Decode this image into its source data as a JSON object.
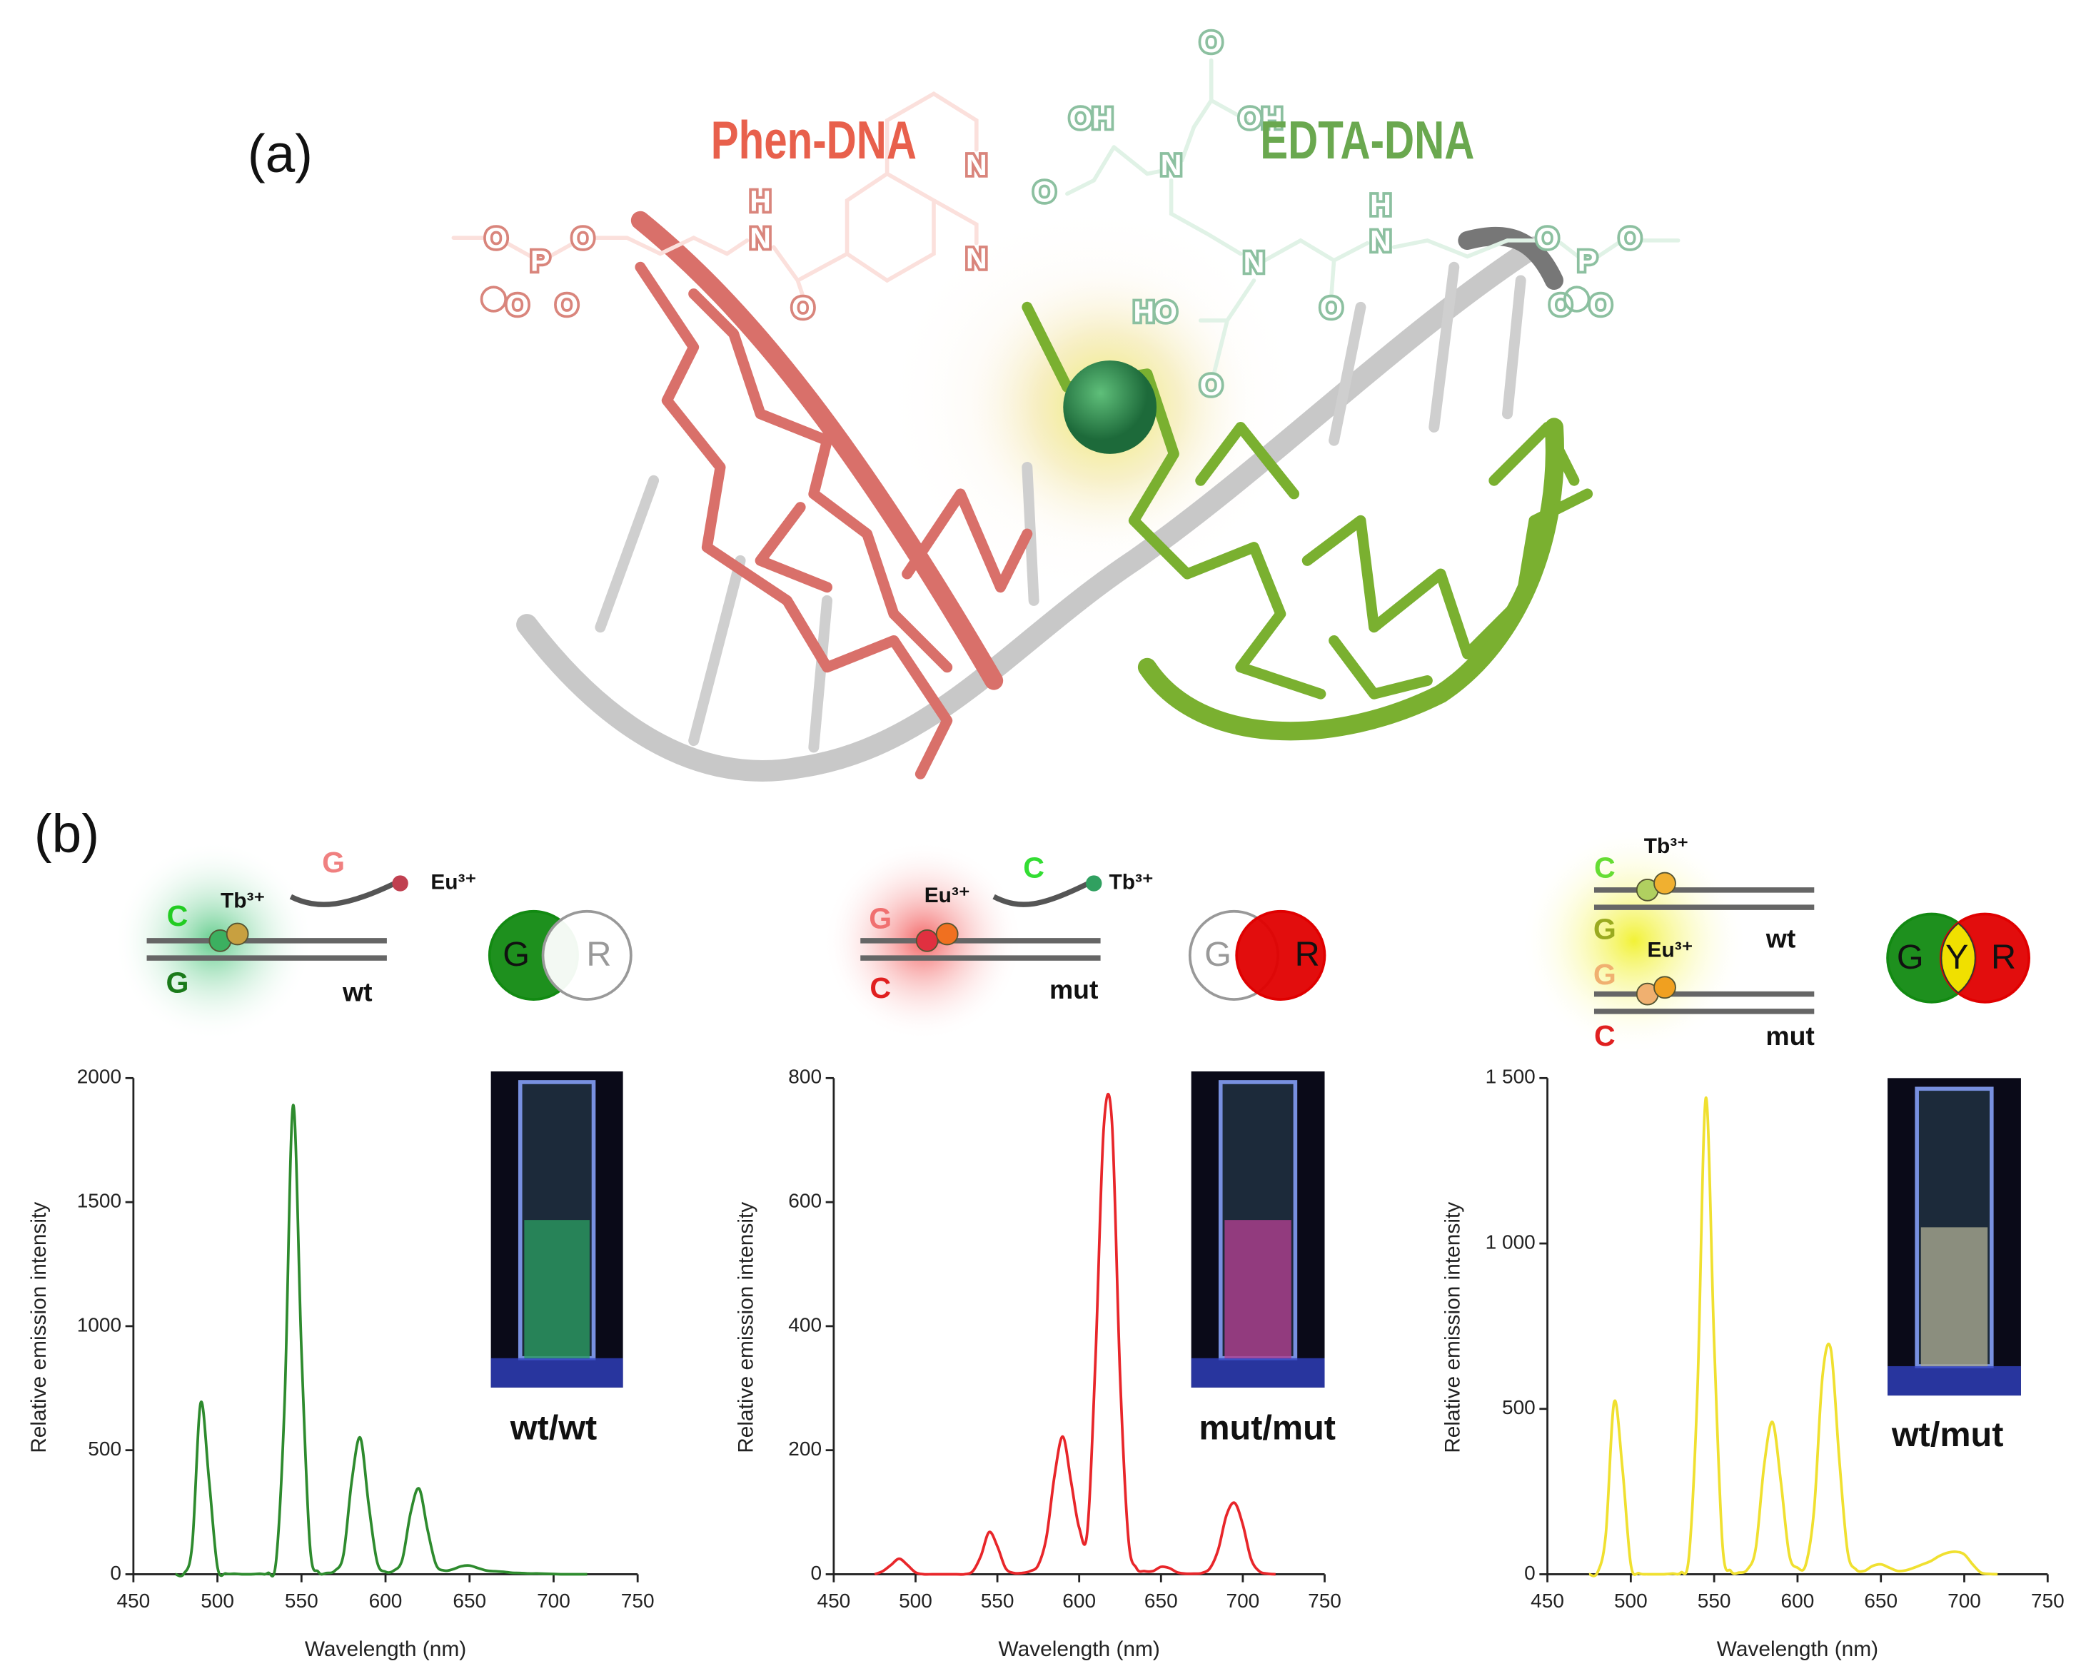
{
  "figure": {
    "panel_a": "(a)",
    "panel_b": "(b)",
    "phen_label": "Phen-DNA",
    "edta_label": "EDTA-DNA",
    "atoms": [
      "O",
      "P",
      "O",
      "O",
      "O",
      "H",
      "N",
      "O",
      "N",
      "N",
      "O",
      "OH",
      "OH",
      "O",
      "N",
      "N",
      "HO",
      "O",
      "H",
      "N",
      "O",
      "O",
      "P",
      "O",
      "O",
      "O"
    ]
  },
  "schemes": [
    {
      "texts": [
        "G",
        "Eu³⁺",
        "Tb³⁺",
        "C",
        "G",
        "wt"
      ],
      "venn": [
        "G",
        "R"
      ]
    },
    {
      "texts": [
        "C",
        "Tb³⁺",
        "Eu³⁺",
        "G",
        "C",
        "mut"
      ],
      "venn": [
        "G",
        "R"
      ]
    },
    {
      "texts": [
        "Tb³⁺",
        "C",
        "G",
        "wt",
        "Eu³⁺",
        "G",
        "C",
        "mut"
      ],
      "venn": [
        "G",
        "Y",
        "R"
      ]
    }
  ],
  "chart_data": [
    {
      "type": "line",
      "xlabel": "Wavelength (nm)",
      "ylabel": "Relative emission intensity",
      "annotation": "wt/wt",
      "xlim": [
        450,
        750
      ],
      "xticks": [
        450,
        500,
        550,
        600,
        650,
        700,
        750
      ],
      "ylim": [
        0,
        2000
      ],
      "yticks": [
        0,
        500,
        1000,
        1500,
        2000
      ],
      "x": [
        475,
        480,
        485,
        490,
        495,
        500,
        505,
        510,
        515,
        520,
        525,
        530,
        535,
        540,
        545,
        550,
        555,
        560,
        565,
        570,
        575,
        580,
        585,
        590,
        595,
        600,
        605,
        610,
        615,
        620,
        625,
        630,
        635,
        640,
        645,
        650,
        655,
        660,
        665,
        670,
        675,
        680,
        685,
        690,
        695,
        700,
        705,
        710,
        715,
        720
      ],
      "series": [
        {
          "color": "#2e8b2e",
          "values": [
            0,
            2,
            120,
            690,
            380,
            30,
            3,
            2,
            0,
            0,
            2,
            5,
            60,
            700,
            1890,
            900,
            120,
            10,
            5,
            15,
            80,
            380,
            550,
            280,
            50,
            10,
            15,
            60,
            250,
            345,
            180,
            40,
            15,
            20,
            32,
            35,
            25,
            15,
            12,
            10,
            6,
            5,
            3,
            3,
            2,
            1,
            0,
            0,
            0,
            0
          ]
        }
      ]
    },
    {
      "type": "line",
      "xlabel": "Wavelength (nm)",
      "ylabel": "Relative emission intensity",
      "annotation": "mut/mut",
      "xlim": [
        450,
        750
      ],
      "xticks": [
        450,
        500,
        550,
        600,
        650,
        700,
        750
      ],
      "ylim": [
        0,
        800
      ],
      "yticks": [
        0,
        200,
        400,
        600,
        800
      ],
      "x": [
        475,
        480,
        485,
        490,
        495,
        500,
        505,
        510,
        515,
        520,
        525,
        530,
        535,
        540,
        545,
        550,
        555,
        560,
        565,
        570,
        575,
        580,
        585,
        590,
        595,
        600,
        605,
        610,
        615,
        620,
        625,
        630,
        635,
        640,
        645,
        650,
        655,
        660,
        665,
        670,
        675,
        680,
        685,
        690,
        695,
        700,
        705,
        710,
        715,
        720
      ],
      "series": [
        {
          "color": "#e8262a",
          "values": [
            0,
            5,
            15,
            25,
            15,
            3,
            0,
            0,
            0,
            0,
            0,
            0,
            5,
            30,
            68,
            45,
            10,
            2,
            2,
            5,
            15,
            60,
            160,
            222,
            150,
            75,
            70,
            350,
            720,
            730,
            320,
            60,
            10,
            5,
            5,
            12,
            10,
            3,
            1,
            1,
            2,
            10,
            40,
            95,
            115,
            80,
            25,
            5,
            1,
            0
          ]
        }
      ]
    },
    {
      "type": "line",
      "xlabel": "Wavelength (nm)",
      "ylabel": "Relative emission intensity",
      "annotation": "wt/mut",
      "xlim": [
        450,
        750
      ],
      "xticks": [
        450,
        500,
        550,
        600,
        650,
        700,
        750
      ],
      "ylim": [
        0,
        1500
      ],
      "yticks": [
        0,
        500,
        {
          "value": 1000,
          "label": "1 000"
        },
        {
          "value": 1500,
          "label": "1 500"
        }
      ],
      "x": [
        475,
        480,
        485,
        490,
        495,
        500,
        505,
        510,
        515,
        520,
        525,
        530,
        535,
        540,
        545,
        550,
        555,
        560,
        565,
        570,
        575,
        580,
        585,
        590,
        595,
        600,
        605,
        610,
        615,
        620,
        625,
        630,
        635,
        640,
        645,
        650,
        655,
        660,
        665,
        670,
        675,
        680,
        685,
        690,
        695,
        700,
        705,
        710,
        715,
        720
      ],
      "series": [
        {
          "color": "#f0e030",
          "values": [
            0,
            5,
            120,
            520,
            320,
            30,
            3,
            0,
            0,
            0,
            2,
            5,
            60,
            560,
            1440,
            700,
            90,
            10,
            5,
            15,
            80,
            330,
            460,
            280,
            60,
            20,
            30,
            200,
            600,
            680,
            350,
            70,
            15,
            10,
            25,
            30,
            20,
            10,
            12,
            20,
            30,
            40,
            55,
            65,
            68,
            60,
            30,
            5,
            1,
            0
          ]
        }
      ]
    }
  ]
}
